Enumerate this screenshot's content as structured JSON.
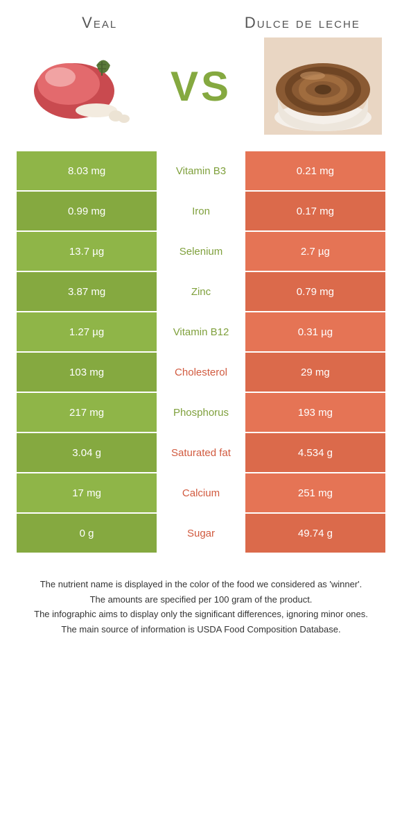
{
  "header": {
    "left_title": "Veal",
    "right_title": "Dulce de leche",
    "vs": "VS"
  },
  "colors": {
    "green_a": "#8fb548",
    "green_b": "#85a940",
    "orange_a": "#e57455",
    "orange_b": "#db6a4b",
    "green_text": "#7fa03c",
    "orange_text": "#d15a3f",
    "bg": "#ffffff"
  },
  "rows": [
    {
      "left": "8.03 mg",
      "nutrient": "Vitamin B3",
      "right": "0.21 mg",
      "winner": "left"
    },
    {
      "left": "0.99 mg",
      "nutrient": "Iron",
      "right": "0.17 mg",
      "winner": "left"
    },
    {
      "left": "13.7 µg",
      "nutrient": "Selenium",
      "right": "2.7 µg",
      "winner": "left"
    },
    {
      "left": "3.87 mg",
      "nutrient": "Zinc",
      "right": "0.79 mg",
      "winner": "left"
    },
    {
      "left": "1.27 µg",
      "nutrient": "Vitamin B12",
      "right": "0.31 µg",
      "winner": "left"
    },
    {
      "left": "103 mg",
      "nutrient": "Cholesterol",
      "right": "29 mg",
      "winner": "right"
    },
    {
      "left": "217 mg",
      "nutrient": "Phosphorus",
      "right": "193 mg",
      "winner": "left"
    },
    {
      "left": "3.04 g",
      "nutrient": "Saturated fat",
      "right": "4.534 g",
      "winner": "right"
    },
    {
      "left": "17 mg",
      "nutrient": "Calcium",
      "right": "251 mg",
      "winner": "right"
    },
    {
      "left": "0 g",
      "nutrient": "Sugar",
      "right": "49.74 g",
      "winner": "right"
    }
  ],
  "footer": {
    "line1": "The nutrient name is displayed in the color of the food we considered as 'winner'.",
    "line2": "The amounts are specified per 100 gram of the product.",
    "line3": "The infographic aims to display only the significant differences, ignoring minor ones.",
    "line4": "The main source of information is USDA Food Composition Database."
  }
}
